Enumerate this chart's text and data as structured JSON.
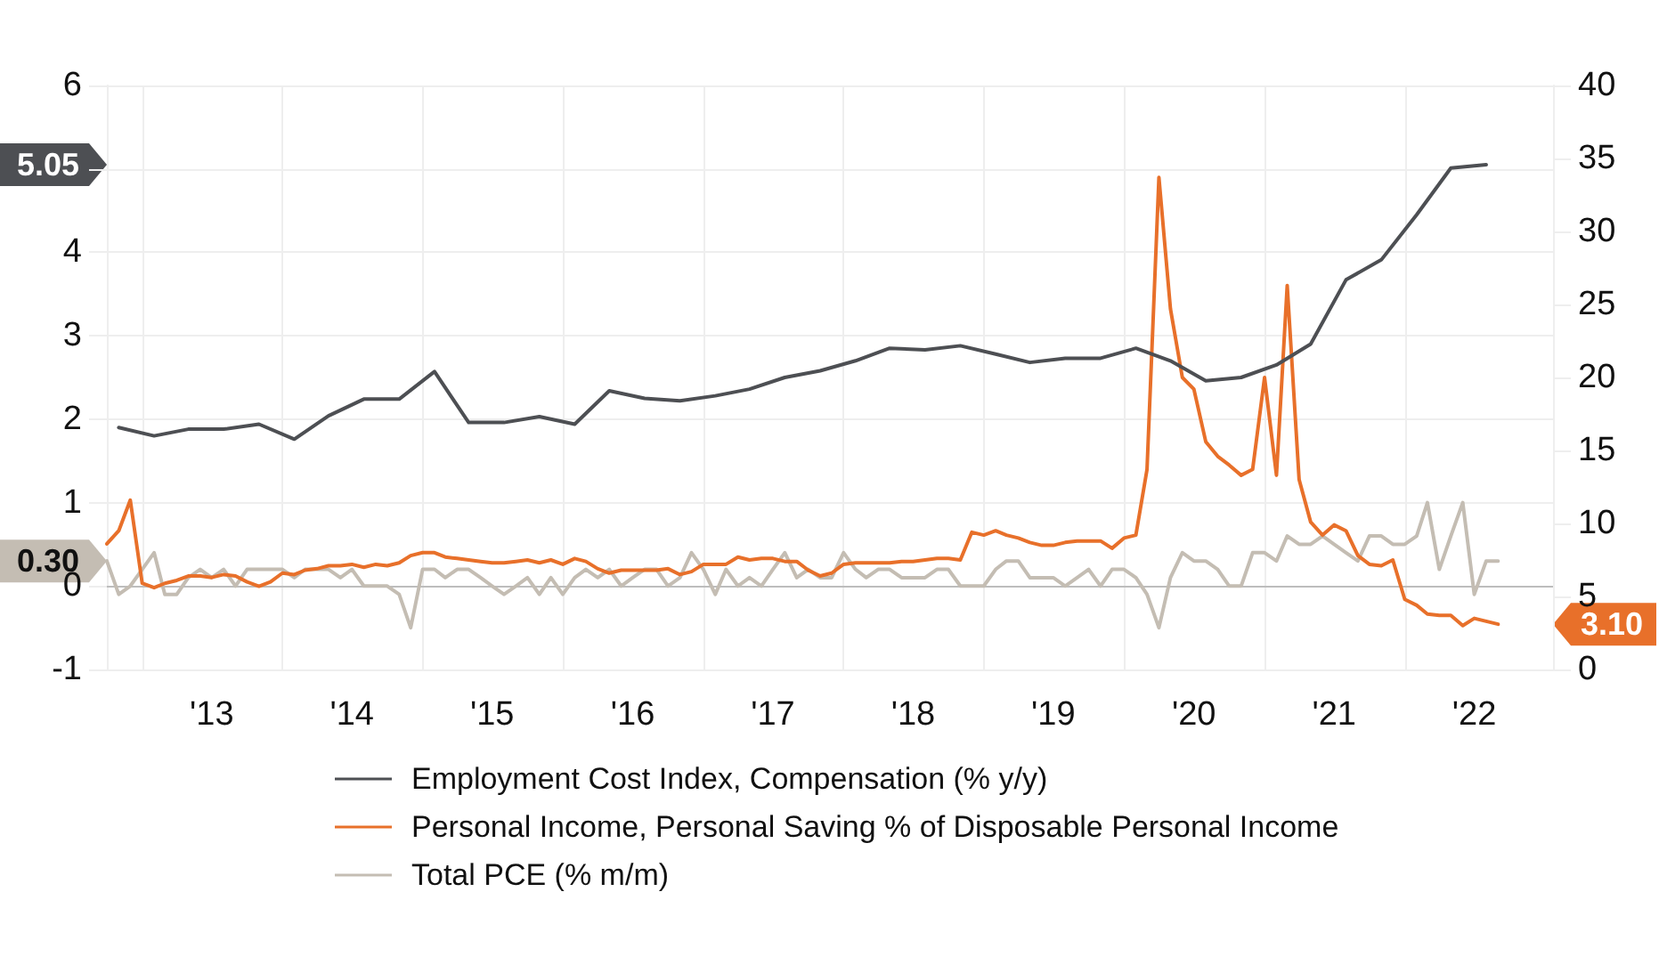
{
  "chart_data": {
    "type": "line",
    "x": [
      "2012-10",
      "2012-11",
      "2012-12",
      "2013-01",
      "2013-02",
      "2013-03",
      "2013-04",
      "2013-05",
      "2013-06",
      "2013-07",
      "2013-08",
      "2013-09",
      "2013-10",
      "2013-11",
      "2013-12",
      "2014-01",
      "2014-02",
      "2014-03",
      "2014-04",
      "2014-05",
      "2014-06",
      "2014-07",
      "2014-08",
      "2014-09",
      "2014-10",
      "2014-11",
      "2014-12",
      "2015-01",
      "2015-02",
      "2015-03",
      "2015-04",
      "2015-05",
      "2015-06",
      "2015-07",
      "2015-08",
      "2015-09",
      "2015-10",
      "2015-11",
      "2015-12",
      "2016-01",
      "2016-02",
      "2016-03",
      "2016-04",
      "2016-05",
      "2016-06",
      "2016-07",
      "2016-08",
      "2016-09",
      "2016-10",
      "2016-11",
      "2016-12",
      "2017-01",
      "2017-02",
      "2017-03",
      "2017-04",
      "2017-05",
      "2017-06",
      "2017-07",
      "2017-08",
      "2017-09",
      "2017-10",
      "2017-11",
      "2017-12",
      "2018-01",
      "2018-02",
      "2018-03",
      "2018-04",
      "2018-05",
      "2018-06",
      "2018-07",
      "2018-08",
      "2018-09",
      "2018-10",
      "2018-11",
      "2018-12",
      "2019-01",
      "2019-02",
      "2019-03",
      "2019-04",
      "2019-05",
      "2019-06",
      "2019-07",
      "2019-08",
      "2019-09",
      "2019-10",
      "2019-11",
      "2019-12",
      "2020-01",
      "2020-02",
      "2020-03",
      "2020-04",
      "2020-05",
      "2020-06",
      "2020-07",
      "2020-08",
      "2020-09",
      "2020-10",
      "2020-11",
      "2020-12",
      "2021-01",
      "2021-02",
      "2021-03",
      "2021-04",
      "2021-05",
      "2021-06",
      "2021-07",
      "2021-08",
      "2021-09",
      "2021-10",
      "2021-11",
      "2021-12",
      "2022-01",
      "2022-02",
      "2022-03",
      "2022-04",
      "2022-05",
      "2022-06",
      "2022-07",
      "2022-08",
      "2022-09"
    ],
    "series": [
      {
        "name": "Employment Cost Index, Compensation (% y/y)",
        "color": "#4d4f53",
        "x": [
          "2012-11",
          "2013-02",
          "2013-05",
          "2013-08",
          "2013-11",
          "2014-02",
          "2014-05",
          "2014-08",
          "2014-11",
          "2015-02",
          "2015-05",
          "2015-08",
          "2015-11",
          "2016-02",
          "2016-05",
          "2016-08",
          "2016-11",
          "2017-02",
          "2017-05",
          "2017-08",
          "2017-11",
          "2018-02",
          "2018-05",
          "2018-08",
          "2018-11",
          "2019-02",
          "2019-05",
          "2019-08",
          "2019-11",
          "2020-02",
          "2020-05",
          "2020-08",
          "2020-11",
          "2021-02",
          "2021-05",
          "2021-08",
          "2021-11",
          "2022-02",
          "2022-05",
          "2022-08"
        ],
        "values": [
          1.9,
          1.8,
          1.88,
          1.88,
          1.94,
          1.76,
          2.04,
          2.24,
          2.24,
          2.57,
          1.96,
          1.96,
          2.03,
          1.94,
          2.34,
          2.25,
          2.22,
          2.28,
          2.36,
          2.5,
          2.58,
          2.7,
          2.85,
          2.83,
          2.88,
          2.78,
          2.68,
          2.73,
          2.73,
          2.85,
          2.7,
          2.46,
          2.5,
          2.65,
          2.9,
          3.67,
          3.91,
          4.45,
          5.01,
          5.05
        ]
      },
      {
        "name": "Personal Income, Personal Saving % of Disposable Personal Income",
        "color": "#e8702a",
        "axis": "y2",
        "values": [
          8.6,
          9.5,
          11.6,
          5.9,
          5.6,
          5.9,
          6.1,
          6.4,
          6.4,
          6.3,
          6.5,
          6.4,
          6.0,
          5.7,
          6.0,
          6.6,
          6.5,
          6.8,
          6.9,
          7.1,
          7.1,
          7.2,
          7.0,
          7.2,
          7.1,
          7.3,
          7.8,
          8.0,
          8.0,
          7.7,
          7.6,
          7.5,
          7.4,
          7.3,
          7.3,
          7.4,
          7.5,
          7.3,
          7.5,
          7.2,
          7.6,
          7.4,
          6.9,
          6.6,
          6.8,
          6.8,
          6.8,
          6.8,
          6.9,
          6.5,
          6.7,
          7.2,
          7.2,
          7.2,
          7.7,
          7.5,
          7.6,
          7.6,
          7.4,
          7.4,
          6.8,
          6.4,
          6.6,
          7.2,
          7.3,
          7.3,
          7.3,
          7.3,
          7.4,
          7.4,
          7.5,
          7.6,
          7.6,
          7.5,
          9.4,
          9.2,
          9.5,
          9.2,
          9.0,
          8.7,
          8.5,
          8.5,
          8.7,
          8.8,
          8.8,
          8.8,
          8.3,
          9.0,
          9.2,
          13.7,
          33.7,
          24.7,
          20.0,
          19.2,
          15.6,
          14.6,
          14.0,
          13.3,
          13.7,
          20.0,
          13.3,
          26.3,
          13.0,
          10.1,
          9.2,
          9.9,
          9.5,
          7.8,
          7.2,
          7.1,
          7.5,
          4.8,
          4.4,
          3.8,
          3.7,
          3.7,
          3.0,
          3.5,
          3.3,
          3.1
        ]
      },
      {
        "name": "Total PCE (% m/m)",
        "color": "#c4bdb3",
        "values": [
          0.3,
          -0.1,
          0.0,
          0.2,
          0.4,
          -0.1,
          -0.1,
          0.1,
          0.2,
          0.1,
          0.2,
          0.0,
          0.2,
          0.2,
          0.2,
          0.2,
          0.1,
          0.2,
          0.2,
          0.2,
          0.1,
          0.2,
          0.0,
          0.0,
          0.0,
          -0.1,
          -0.5,
          0.2,
          0.2,
          0.1,
          0.2,
          0.2,
          0.1,
          0.0,
          -0.1,
          0.0,
          0.1,
          -0.1,
          0.1,
          -0.1,
          0.1,
          0.2,
          0.1,
          0.2,
          0.0,
          0.1,
          0.2,
          0.2,
          0.0,
          0.1,
          0.4,
          0.2,
          -0.1,
          0.2,
          0.0,
          0.1,
          0.0,
          0.2,
          0.4,
          0.1,
          0.2,
          0.1,
          0.1,
          0.4,
          0.2,
          0.1,
          0.2,
          0.2,
          0.1,
          0.1,
          0.1,
          0.2,
          0.2,
          0.0,
          0.0,
          0.0,
          0.2,
          0.3,
          0.3,
          0.1,
          0.1,
          0.1,
          0.0,
          0.1,
          0.2,
          0.0,
          0.2,
          0.2,
          0.1,
          -0.1,
          -0.5,
          0.1,
          0.4,
          0.3,
          0.3,
          0.2,
          0.0,
          0.0,
          0.4,
          0.4,
          0.3,
          0.6,
          0.5,
          0.5,
          0.6,
          0.5,
          0.4,
          0.3,
          0.6,
          0.6,
          0.5,
          0.5,
          0.6,
          1.0,
          0.2,
          0.6,
          1.0,
          -0.1,
          0.3,
          0.3
        ]
      }
    ],
    "xlim": [
      "2012-10-01",
      "2023-01-22"
    ],
    "xticks": [
      {
        "value": "2013",
        "label": null
      },
      {
        "value": "2013-07",
        "label": "'13"
      },
      {
        "value": "2014",
        "label": null
      },
      {
        "value": "2014-07",
        "label": "'14"
      },
      {
        "value": "2015",
        "label": null
      },
      {
        "value": "2015-07",
        "label": "'15"
      },
      {
        "value": "2016",
        "label": null
      },
      {
        "value": "2016-07",
        "label": "'16"
      },
      {
        "value": "2017",
        "label": null
      },
      {
        "value": "2017-07",
        "label": "'17"
      },
      {
        "value": "2018",
        "label": null
      },
      {
        "value": "2018-07",
        "label": "'18"
      },
      {
        "value": "2019",
        "label": null
      },
      {
        "value": "2019-07",
        "label": "'19"
      },
      {
        "value": "2020",
        "label": null
      },
      {
        "value": "2020-07",
        "label": "'20"
      },
      {
        "value": "2021",
        "label": null
      },
      {
        "value": "2021-07",
        "label": "'21"
      },
      {
        "value": "2022",
        "label": null
      },
      {
        "value": "2022-07",
        "label": "'22"
      }
    ],
    "ylim": [
      -1,
      6
    ],
    "yticks": [
      -1,
      0,
      1,
      2,
      3,
      4,
      {
        "value": 5,
        "label": null
      },
      6
    ],
    "y2lim": [
      0,
      40
    ],
    "y2ticks": [
      0,
      5,
      10,
      15,
      20,
      25,
      30,
      35,
      40
    ],
    "ref_lines": [
      {
        "axis": "y",
        "value": 0,
        "color": "#bdbdbd"
      }
    ],
    "annotations": [
      "5.05",
      "3.10",
      "0.30"
    ],
    "grid": true,
    "legend": "bottom"
  }
}
